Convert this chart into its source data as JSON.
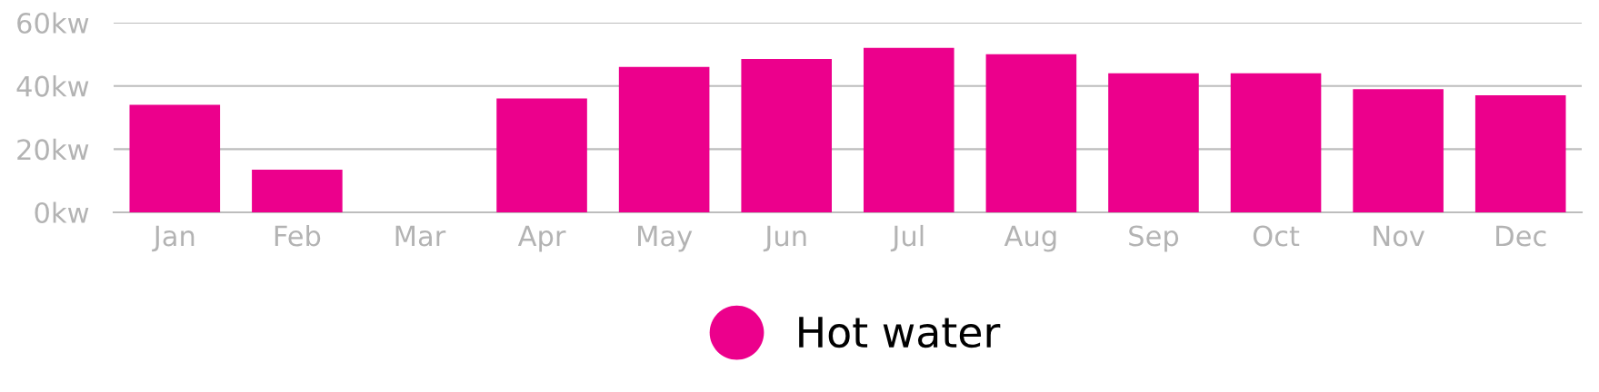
{
  "chart_data": {
    "type": "bar",
    "categories": [
      "Jan",
      "Feb",
      "Mar",
      "Apr",
      "May",
      "Jun",
      "Jul",
      "Aug",
      "Sep",
      "Oct",
      "Nov",
      "Dec"
    ],
    "series": [
      {
        "name": "Hot water",
        "color": "#ec008c",
        "values": [
          34,
          13.5,
          0,
          36,
          46,
          48.5,
          52,
          50,
          44,
          44,
          39,
          37
        ]
      }
    ],
    "ylim": [
      0,
      60
    ],
    "yticks": [
      {
        "value": 0,
        "label": "0kw"
      },
      {
        "value": 20,
        "label": "20kw"
      },
      {
        "value": 40,
        "label": "40kw"
      },
      {
        "value": 60,
        "label": "60kw"
      }
    ],
    "grid": "y",
    "legend": "bottom"
  }
}
